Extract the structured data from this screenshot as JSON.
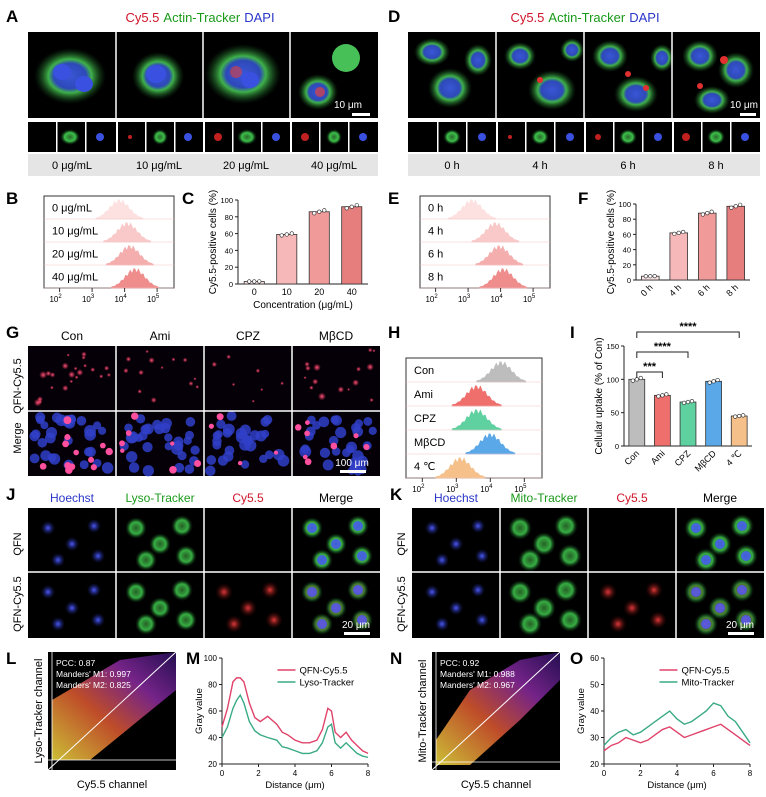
{
  "panel_letters": [
    "A",
    "B",
    "C",
    "D",
    "E",
    "F",
    "G",
    "H",
    "I",
    "J",
    "K",
    "L",
    "M",
    "N",
    "O"
  ],
  "stain_labels": {
    "cy55": "Cy5.5",
    "actin": "Actin-Tracker",
    "dapi": "DAPI"
  },
  "panel_A": {
    "scale_bar": "10 μm",
    "conditions": [
      "0 μg/mL",
      "10 μg/mL",
      "20 μg/mL",
      "40 μg/mL"
    ]
  },
  "panel_D": {
    "scale_bar": "10 μm",
    "conditions": [
      "0 h",
      "4 h",
      "6 h",
      "8 h"
    ]
  },
  "panel_B": {
    "rows": [
      "0 μg/mL",
      "10 μg/mL",
      "20 μg/mL",
      "40 μg/mL"
    ],
    "xticks": [
      "10",
      "10",
      "10",
      "10",
      "10"
    ],
    "xexp": [
      "2",
      "3",
      "4",
      "5"
    ]
  },
  "panel_E": {
    "rows": [
      "0 h",
      "4 h",
      "6 h",
      "8 h"
    ]
  },
  "panel_H": {
    "rows": [
      "Con",
      "Ami",
      "CPZ",
      "MβCD",
      "4 ℃"
    ],
    "colors": [
      "#bdbdbd",
      "#ef6f6c",
      "#5fd1a0",
      "#5aa8e8",
      "#f5c08a"
    ]
  },
  "panel_G": {
    "columns": [
      "Con",
      "Ami",
      "CPZ",
      "MβCD"
    ],
    "rows": [
      "QFN-Cy5.5",
      "Merge"
    ],
    "scale_bar": "100 μm"
  },
  "panel_J": {
    "columns": [
      "Hoechst",
      "Lyso-Tracker",
      "Cy5.5",
      "Merge"
    ],
    "rows": [
      "QFN",
      "QFN-Cy5.5"
    ],
    "scale_bar": "20 μm"
  },
  "panel_K": {
    "columns": [
      "Hoechst",
      "Mito-Tracker",
      "Cy5.5",
      "Merge"
    ],
    "rows": [
      "QFN",
      "QFN-Cy5.5"
    ],
    "scale_bar": "20 μm"
  },
  "panel_L": {
    "xlabel": "Cy5.5 channel",
    "ylabel": "Lyso-Tracker channel",
    "stats": [
      "PCC: 0.87",
      "Manders' M1: 0.997",
      "Manders' M2: 0.825"
    ]
  },
  "panel_N": {
    "xlabel": "Cy5.5 channel",
    "ylabel": "Mito-Tracker channel",
    "stats": [
      "PCC: 0.92",
      "Manders' M1: 0.988",
      "Manders' M2: 0.967"
    ]
  },
  "chart_data": [
    {
      "id": "C",
      "type": "bar",
      "categories": [
        "0",
        "10",
        "20",
        "40"
      ],
      "values": [
        3,
        59,
        86,
        92
      ],
      "ylabel": "Cy5.5-positive cells (%)",
      "xlabel": "Concentration (μg/mL)",
      "ylim": [
        0,
        100
      ],
      "yticks": [
        0,
        20,
        40,
        60,
        80,
        100
      ],
      "colors": [
        "#fbe3e3",
        "#f6b8b8",
        "#f09a9a",
        "#e67e7e"
      ]
    },
    {
      "id": "F",
      "type": "bar",
      "categories": [
        "0 h",
        "4 h",
        "6 h",
        "8 h"
      ],
      "values": [
        5,
        62,
        88,
        97
      ],
      "ylabel": "Cy5.5-positive cells (%)",
      "ylim": [
        0,
        100
      ],
      "yticks": [
        0,
        20,
        40,
        60,
        80,
        100
      ],
      "colors": [
        "#fbe3e3",
        "#f6b8b8",
        "#f09a9a",
        "#e67e7e"
      ]
    },
    {
      "id": "I",
      "type": "bar",
      "categories": [
        "Con",
        "Ami",
        "CPZ",
        "MβCD",
        "4 ℃"
      ],
      "values": [
        100,
        76,
        66,
        97,
        45
      ],
      "ylabel": "Cellular uptake (% of Con)",
      "ylim": [
        0,
        150
      ],
      "yticks": [
        0,
        50,
        100,
        150
      ],
      "colors": [
        "#bdbdbd",
        "#ef6f6c",
        "#5fd1a0",
        "#5aa8e8",
        "#f5c08a"
      ],
      "significance": [
        "***",
        "****",
        "****"
      ]
    },
    {
      "id": "M",
      "type": "line",
      "xlabel": "Distance (μm)",
      "ylabel": "Gray value",
      "xlim": [
        0,
        8
      ],
      "ylim": [
        20,
        100
      ],
      "xticks": [
        0,
        2,
        4,
        6,
        8
      ],
      "yticks": [
        20,
        40,
        60,
        80,
        100
      ],
      "series": [
        {
          "name": "QFN-Cy5.5",
          "color": "#e0436a",
          "x": [
            0,
            0.3,
            0.6,
            0.8,
            1,
            1.2,
            1.5,
            1.8,
            2.1,
            2.5,
            3,
            3.3,
            3.6,
            4,
            4.4,
            4.8,
            5.2,
            5.5,
            5.8,
            6,
            6.2,
            6.5,
            6.8,
            7.1,
            7.4,
            7.7,
            8
          ],
          "y": [
            48,
            62,
            82,
            85,
            85,
            82,
            66,
            55,
            52,
            56,
            50,
            44,
            42,
            38,
            36,
            36,
            38,
            46,
            62,
            60,
            44,
            40,
            44,
            38,
            34,
            30,
            28
          ]
        },
        {
          "name": "Lyso-Tracker",
          "color": "#3aaa86",
          "x": [
            0,
            0.3,
            0.6,
            0.8,
            1,
            1.2,
            1.5,
            1.8,
            2.1,
            2.5,
            3,
            3.3,
            3.6,
            4,
            4.4,
            4.8,
            5.2,
            5.5,
            5.8,
            6,
            6.2,
            6.5,
            6.8,
            7.1,
            7.4,
            7.7,
            8
          ],
          "y": [
            40,
            48,
            62,
            68,
            72,
            66,
            52,
            45,
            42,
            40,
            38,
            33,
            32,
            30,
            28,
            28,
            30,
            36,
            48,
            50,
            36,
            32,
            36,
            32,
            28,
            26,
            25
          ]
        }
      ]
    },
    {
      "id": "O",
      "type": "line",
      "xlabel": "Distance (μm)",
      "ylabel": "Gray value",
      "xlim": [
        0,
        8
      ],
      "ylim": [
        20,
        60
      ],
      "xticks": [
        0,
        2,
        4,
        6,
        8
      ],
      "yticks": [
        20,
        30,
        40,
        50,
        60
      ],
      "series": [
        {
          "name": "QFN-Cy5.5",
          "color": "#e0436a",
          "x": [
            0,
            0.4,
            0.8,
            1.2,
            1.6,
            2,
            2.4,
            2.8,
            3.2,
            3.6,
            4,
            4.4,
            4.8,
            5.2,
            5.6,
            6,
            6.4,
            6.8,
            7.2,
            7.6,
            8
          ],
          "y": [
            25,
            27,
            28,
            30,
            29,
            28,
            29,
            31,
            33,
            34,
            32,
            30,
            31,
            32,
            33,
            34,
            35,
            33,
            31,
            29,
            27
          ]
        },
        {
          "name": "Mito-Tracker",
          "color": "#3aaa86",
          "x": [
            0,
            0.4,
            0.8,
            1.2,
            1.6,
            2,
            2.4,
            2.8,
            3.2,
            3.6,
            4,
            4.4,
            4.8,
            5.2,
            5.6,
            6,
            6.4,
            6.8,
            7.2,
            7.6,
            8
          ],
          "y": [
            27,
            30,
            32,
            33,
            31,
            32,
            34,
            36,
            38,
            40,
            37,
            35,
            36,
            38,
            40,
            43,
            42,
            38,
            36,
            32,
            28
          ]
        }
      ]
    }
  ]
}
